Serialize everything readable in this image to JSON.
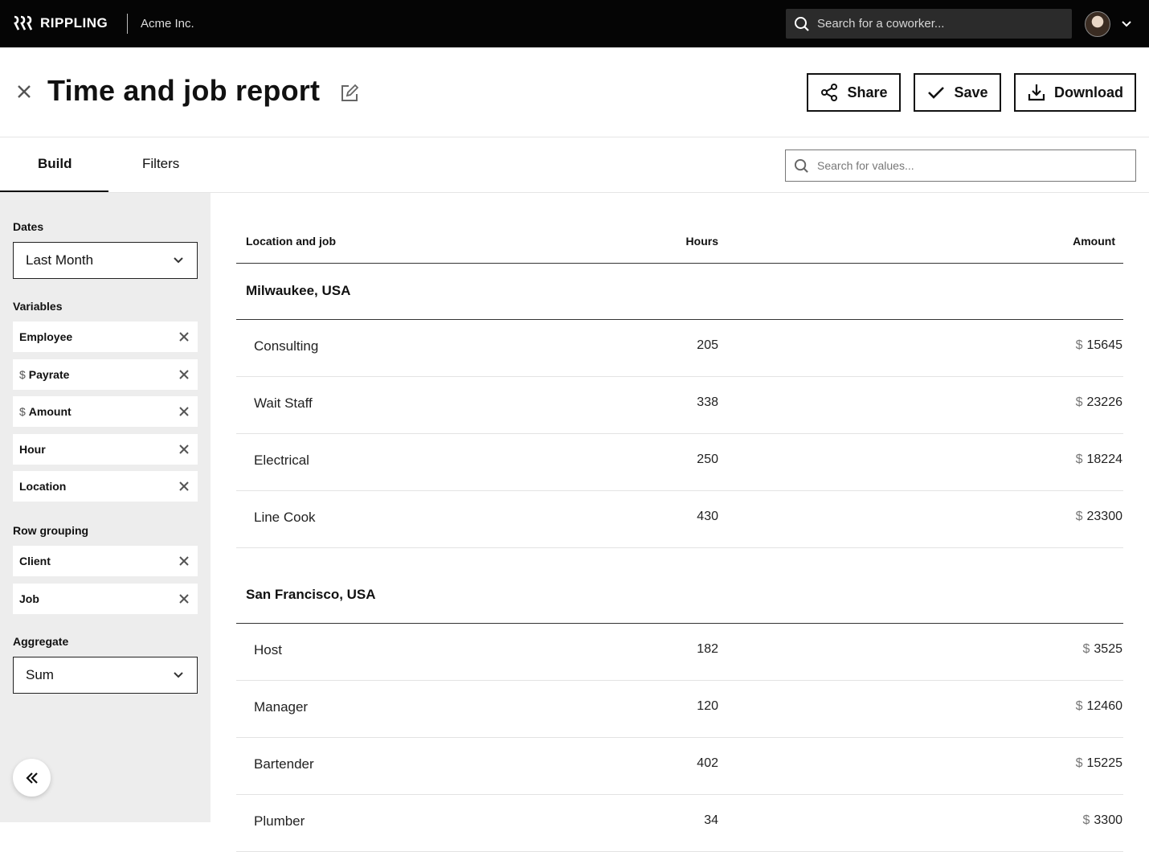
{
  "topbar": {
    "brand": "RIPPLING",
    "company": "Acme Inc.",
    "search_placeholder": "Search for a coworker..."
  },
  "header": {
    "title": "Time and job report",
    "share_label": "Share",
    "save_label": "Save",
    "download_label": "Download"
  },
  "tabs": {
    "build": "Build",
    "filters": "Filters",
    "value_search_placeholder": "Search for values..."
  },
  "sidebar": {
    "dates_label": "Dates",
    "dates_value": "Last Month",
    "variables_label": "Variables",
    "variables": [
      {
        "label": "Employee",
        "currency": ""
      },
      {
        "label": "Payrate",
        "currency": "$"
      },
      {
        "label": "Amount",
        "currency": "$"
      },
      {
        "label": "Hour",
        "currency": ""
      },
      {
        "label": "Location",
        "currency": ""
      }
    ],
    "row_grouping_label": "Row grouping",
    "row_grouping": [
      {
        "label": "Client"
      },
      {
        "label": "Job"
      }
    ],
    "aggregate_label": "Aggregate",
    "aggregate_value": "Sum"
  },
  "table": {
    "headers": {
      "location_job": "Location and job",
      "hours": "Hours",
      "amount": "Amount"
    },
    "currency": "$",
    "groups": [
      {
        "name": "Milwaukee, USA",
        "rows": [
          {
            "job": "Consulting",
            "hours": "205",
            "amount": "15645"
          },
          {
            "job": "Wait Staff",
            "hours": "338",
            "amount": "23226"
          },
          {
            "job": "Electrical",
            "hours": "250",
            "amount": "18224"
          },
          {
            "job": "Line Cook",
            "hours": "430",
            "amount": "23300"
          }
        ]
      },
      {
        "name": "San Francisco, USA",
        "rows": [
          {
            "job": "Host",
            "hours": "182",
            "amount": "3525"
          },
          {
            "job": "Manager",
            "hours": "120",
            "amount": "12460"
          },
          {
            "job": "Bartender",
            "hours": "402",
            "amount": "15225"
          },
          {
            "job": "Plumber",
            "hours": "34",
            "amount": "3300"
          }
        ]
      }
    ]
  },
  "colors": {
    "topbar_bg": "#050505",
    "sidebar_bg": "#ededed",
    "text": "#111111"
  }
}
